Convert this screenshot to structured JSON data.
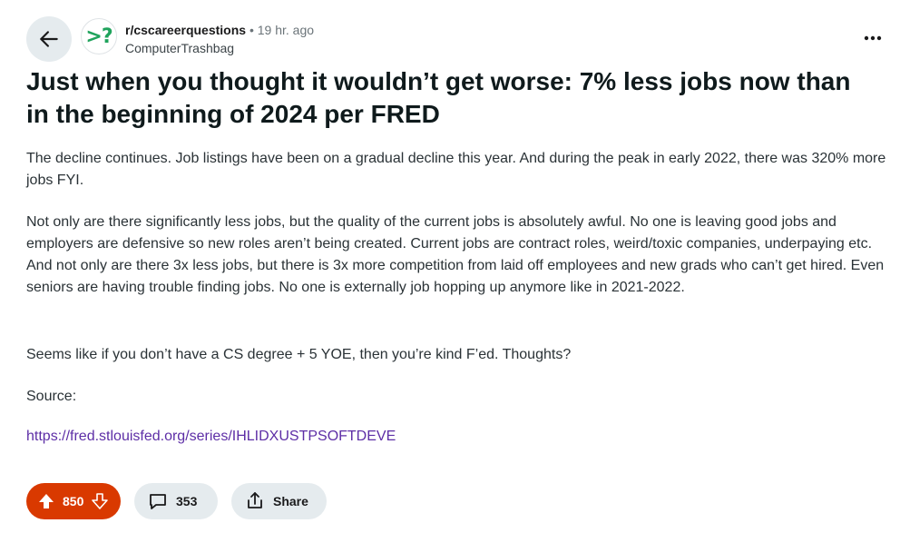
{
  "post": {
    "subreddit": "r/cscareerquestions",
    "separator": "•",
    "time_ago": "19 hr. ago",
    "author": "ComputerTrashbag",
    "avatar_text": ">?",
    "title": "Just when you thought it wouldn’t get worse: 7% less jobs now than in the beginning of 2024 per FRED",
    "body": {
      "p1": "The decline continues. Job listings have been on a gradual decline this year. And during the peak in early 2022, there was 320% more jobs FYI.",
      "p2": "Not only are there significantly less jobs, but the quality of the current jobs is absolutely awful. No one is leaving good jobs and employers are defensive so new roles aren’t being created. Current jobs are contract roles, weird/toxic companies, underpaying etc. And not only are there 3x less jobs, but there is 3x more competition from laid off employees and new grads who can’t get hired. Even seniors are having trouble finding jobs. No one is externally job hopping up anymore like in 2021-2022.",
      "p3": "Seems like if you don’t have a CS degree + 5 YOE, then you’re kind F’ed. Thoughts?",
      "p4": "Source:",
      "link": "https://fred.stlouisfed.org/series/IHLIDXUSTPSOFTDEVE"
    }
  },
  "actions": {
    "score": "850",
    "comments": "353",
    "share_label": "Share"
  },
  "icons": {
    "back": "arrow-left-icon",
    "more": "more-horizontal-icon",
    "upvote": "upvote-arrow-icon",
    "downvote": "downvote-arrow-icon",
    "comment": "comment-bubble-icon",
    "share": "share-icon"
  },
  "colors": {
    "upvote_active": "#d93900",
    "avatar_accent": "#1fa35c",
    "link": "#5d2ea6",
    "pill_bg": "#e5ebee"
  }
}
